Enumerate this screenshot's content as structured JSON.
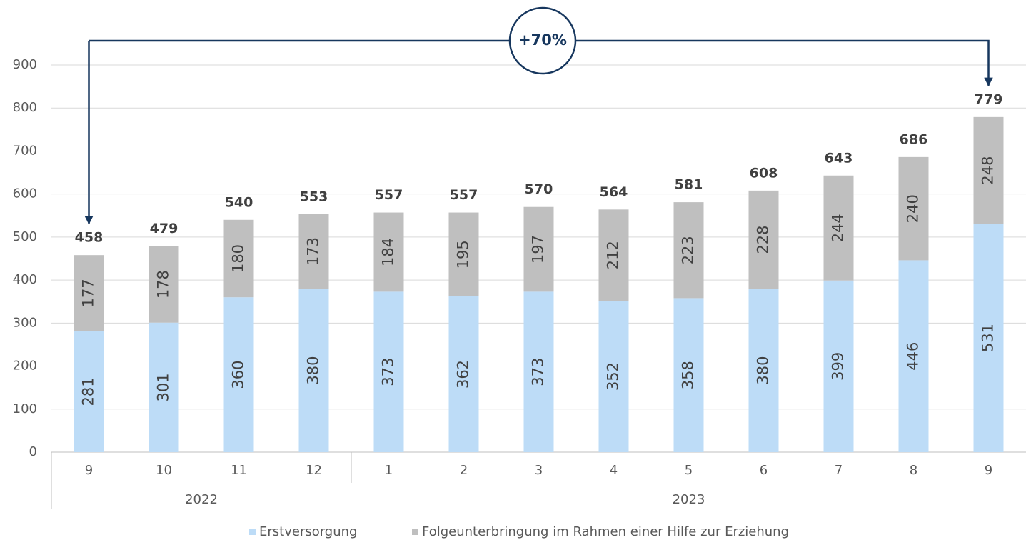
{
  "chart_data": {
    "type": "stacked_bar",
    "categories": [
      "9",
      "10",
      "11",
      "12",
      "1",
      "2",
      "3",
      "4",
      "5",
      "6",
      "7",
      "8",
      "9"
    ],
    "groups": [
      {
        "label": "2022",
        "count": 4
      },
      {
        "label": "2023",
        "count": 9
      }
    ],
    "series": [
      {
        "name": "Erstversorgung",
        "color": "#bddcf7",
        "values": [
          281,
          301,
          360,
          380,
          373,
          362,
          373,
          352,
          358,
          380,
          399,
          446,
          531
        ]
      },
      {
        "name": "Folgeunterbringung im Rahmen einer Hilfe zur Erziehung",
        "color": "#bfbfbf",
        "values": [
          177,
          178,
          180,
          173,
          184,
          195,
          197,
          212,
          223,
          228,
          244,
          240,
          248
        ]
      }
    ],
    "totals": [
      458,
      479,
      540,
      553,
      557,
      557,
      570,
      564,
      581,
      608,
      643,
      686,
      779
    ],
    "annotation": "+70%",
    "ylim": [
      0,
      900
    ],
    "yticks": [
      0,
      100,
      200,
      300,
      400,
      500,
      600,
      700,
      800,
      900
    ],
    "grid": true
  }
}
